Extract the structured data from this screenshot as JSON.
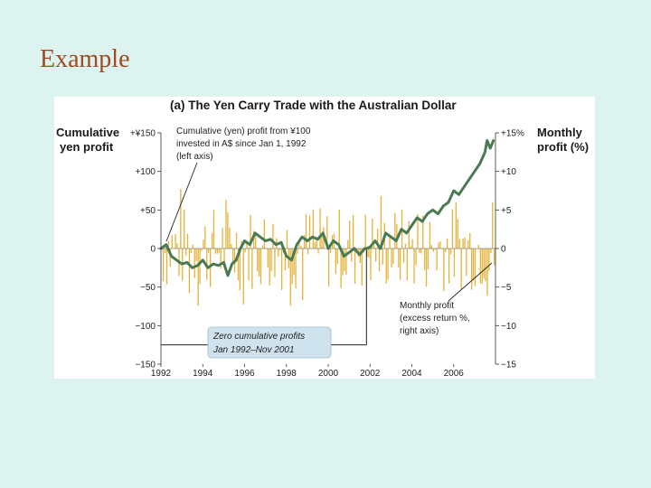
{
  "slide": {
    "title": "Example"
  },
  "chart_data": {
    "type": "bar+line",
    "title": "(a) The Yen Carry Trade with the Australian Dollar",
    "y_left_label_line1": "Cumulative",
    "y_left_label_line2": "yen profit",
    "y_right_label_line1": "Monthly",
    "y_right_label_line2": "profit (%)",
    "y_left_range": [
      -150,
      150
    ],
    "y_right_range": [
      -15,
      15
    ],
    "y_left_ticks": [
      {
        "value": 150,
        "label": "+¥150"
      },
      {
        "value": 100,
        "label": "+100"
      },
      {
        "value": 50,
        "label": "+50"
      },
      {
        "value": 0,
        "label": "0"
      },
      {
        "value": -50,
        "label": "−50"
      },
      {
        "value": -100,
        "label": "−100"
      },
      {
        "value": -150,
        "label": "−150"
      }
    ],
    "y_right_ticks": [
      {
        "value": 15,
        "label": "+15%"
      },
      {
        "value": 10,
        "label": "+10"
      },
      {
        "value": 5,
        "label": "+5"
      },
      {
        "value": 0,
        "label": "0"
      },
      {
        "value": -5,
        "label": "−5"
      },
      {
        "value": -10,
        "label": "−10"
      },
      {
        "value": -15,
        "label": "−15"
      }
    ],
    "x_range": [
      1992,
      2008
    ],
    "x_ticks": [
      "1992",
      "1994",
      "1996",
      "1998",
      "2000",
      "2002",
      "2004",
      "2006"
    ],
    "x_tick_values": [
      1992,
      1994,
      1996,
      1998,
      2000,
      2002,
      2004,
      2006
    ],
    "cumulative_series": {
      "name": "Cumulative (yen) profit from ¥100 invested in A$ since Jan 1, 1992 (left axis)",
      "axis": "left",
      "color": "#4a7a52",
      "x": [
        1992.0,
        1992.25,
        1992.5,
        1992.75,
        1993.0,
        1993.25,
        1993.5,
        1993.75,
        1994.0,
        1994.25,
        1994.5,
        1994.75,
        1995.0,
        1995.2,
        1995.4,
        1995.6,
        1995.8,
        1996.0,
        1996.25,
        1996.5,
        1996.75,
        1997.0,
        1997.25,
        1997.5,
        1997.75,
        1998.0,
        1998.25,
        1998.5,
        1998.75,
        1999.0,
        1999.25,
        1999.5,
        1999.75,
        2000.0,
        2000.25,
        2000.5,
        2000.75,
        2001.0,
        2001.25,
        2001.5,
        2001.75,
        2001.83,
        2002.0,
        2002.25,
        2002.5,
        2002.75,
        2003.0,
        2003.25,
        2003.5,
        2003.75,
        2004.0,
        2004.25,
        2004.5,
        2004.75,
        2005.0,
        2005.25,
        2005.5,
        2005.75,
        2006.0,
        2006.25,
        2006.5,
        2006.75,
        2007.0,
        2007.25,
        2007.5,
        2007.6,
        2007.75,
        2007.9
      ],
      "y": [
        0,
        5,
        -10,
        -15,
        -20,
        -18,
        -25,
        -22,
        -15,
        -25,
        -20,
        -22,
        -18,
        -35,
        -20,
        -15,
        0,
        10,
        5,
        20,
        15,
        10,
        12,
        5,
        8,
        -10,
        -15,
        5,
        15,
        10,
        15,
        12,
        20,
        0,
        10,
        5,
        -10,
        -5,
        0,
        -8,
        0,
        0,
        2,
        10,
        0,
        20,
        15,
        10,
        25,
        20,
        30,
        40,
        35,
        45,
        50,
        45,
        55,
        60,
        75,
        70,
        80,
        90,
        100,
        110,
        125,
        140,
        130,
        140
      ]
    },
    "monthly_series": {
      "name": "Monthly profit (excess return %, right axis)",
      "axis": "right",
      "color": "#e5b23a"
    },
    "annotations": {
      "cumulative_line1": "Cumulative (yen) profit from ¥100",
      "cumulative_line2": "invested in A$ since Jan 1, 1992",
      "cumulative_line3": "(left axis)",
      "monthly_line1": "Monthly profit",
      "monthly_line2": "(excess return %,",
      "monthly_line3": "right axis)",
      "zero_line1": "Zero cumulative profits",
      "zero_line2": "Jan 1992–Nov 2001"
    },
    "zero_period": [
      1992,
      2001.83
    ]
  }
}
